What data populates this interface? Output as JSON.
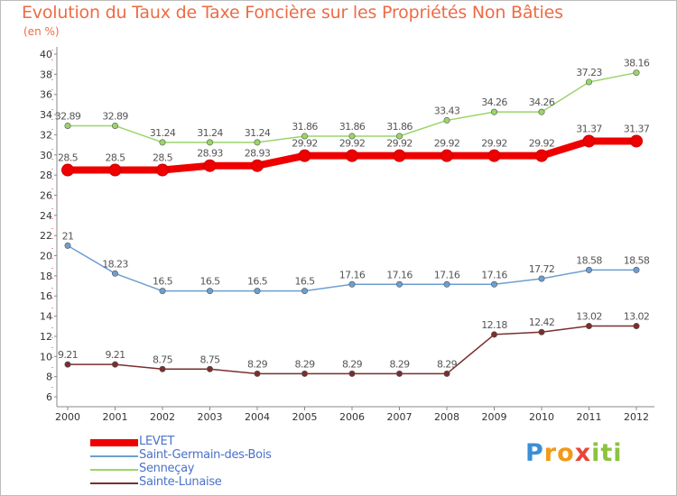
{
  "header": {
    "title": "Evolution du Taux de Taxe Foncière sur les Propriétés Non Bâties",
    "unit": "(en %)"
  },
  "logo": {
    "letters": [
      "P",
      "r",
      "o",
      "x",
      "i",
      "t",
      "i"
    ],
    "colors": [
      "#3a8fd8",
      "#f29a18",
      "#f29a18",
      "#e8463a",
      "#8ac43f",
      "#8ac43f",
      "#8ac43f"
    ]
  },
  "chart_data": {
    "type": "line",
    "title": "Evolution du Taux de Taxe Foncière sur les Propriétés Non Bâties",
    "ylabel": "(en %)",
    "xlabel": "",
    "x": [
      "2000",
      "2001",
      "2002",
      "2003",
      "2004",
      "2005",
      "2006",
      "2007",
      "2008",
      "2009",
      "2010",
      "2011",
      "2012"
    ],
    "ylim": [
      6,
      40
    ],
    "yticks": [
      "6",
      "8",
      "10",
      "12",
      "14",
      "16",
      "18",
      "20",
      "22",
      "24",
      "26",
      "28",
      "30",
      "32",
      "34",
      "36",
      "38",
      "40"
    ],
    "grid": false,
    "legend_position": "bottom-left",
    "series": [
      {
        "name": "LEVET",
        "color": "#ee0000",
        "emphasis": true,
        "values": [
          28.5,
          28.5,
          28.5,
          28.93,
          28.93,
          29.92,
          29.92,
          29.92,
          29.92,
          29.92,
          29.92,
          31.37,
          31.37
        ],
        "labels": [
          "28.5",
          "28.5",
          "28.5",
          "28.93",
          "28.93",
          "29.92",
          "29.92",
          "29.92",
          "29.92",
          "29.92",
          "29.92",
          "31.37",
          "31.37"
        ]
      },
      {
        "name": "Saint-Germain-des-Bois",
        "color": "#6d9fd0",
        "emphasis": false,
        "values": [
          21,
          18.23,
          16.5,
          16.5,
          16.5,
          16.5,
          17.16,
          17.16,
          17.16,
          17.16,
          17.72,
          18.58,
          18.58
        ],
        "labels": [
          "21",
          "18.23",
          "16.5",
          "16.5",
          "16.5",
          "16.5",
          "17.16",
          "17.16",
          "17.16",
          "17.16",
          "17.72",
          "18.58",
          "18.58"
        ]
      },
      {
        "name": "Senneçay",
        "color": "#9ad56a",
        "emphasis": false,
        "values": [
          32.89,
          32.89,
          31.24,
          31.24,
          31.24,
          31.86,
          31.86,
          31.86,
          33.43,
          34.26,
          34.26,
          37.23,
          38.16
        ],
        "labels": [
          "32.89",
          "32.89",
          "31.24",
          "31.24",
          "31.24",
          "31.86",
          "31.86",
          "31.86",
          "33.43",
          "34.26",
          "34.26",
          "37.23",
          "38.16"
        ]
      },
      {
        "name": "Sainte-Lunaise",
        "color": "#7a2e2e",
        "emphasis": false,
        "values": [
          9.21,
          9.21,
          8.75,
          8.75,
          8.29,
          8.29,
          8.29,
          8.29,
          8.29,
          12.18,
          12.42,
          13.02,
          13.02
        ],
        "labels": [
          "9.21",
          "9.21",
          "8.75",
          "8.75",
          "8.29",
          "8.29",
          "8.29",
          "8.29",
          "8.29",
          "12.18",
          "12.42",
          "13.02",
          "13.02"
        ]
      }
    ]
  }
}
